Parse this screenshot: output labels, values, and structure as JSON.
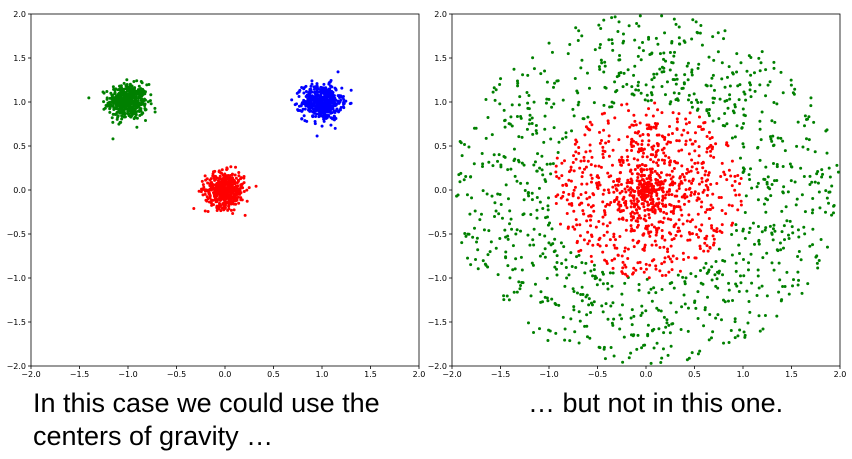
{
  "chart_data": [
    {
      "type": "scatter",
      "xlim": [
        -2.0,
        2.0
      ],
      "ylim": [
        -2.0,
        2.0
      ],
      "x_ticks": [
        "−2.0",
        "−1.5",
        "−1.0",
        "−0.5",
        "0.0",
        "0.5",
        "1.0",
        "1.5",
        "2.0"
      ],
      "y_ticks": [
        "−2.0",
        "−1.5",
        "−1.0",
        "−0.5",
        "0.0",
        "0.5",
        "1.0",
        "1.5",
        "2.0"
      ],
      "grid": false,
      "series": [
        {
          "color": "#008000",
          "shape": "gaussian",
          "center": [
            -1.0,
            1.0
          ],
          "spread": 0.1,
          "count": 500
        },
        {
          "color": "#0000ff",
          "shape": "gaussian",
          "center": [
            1.0,
            1.0
          ],
          "spread": 0.1,
          "count": 500
        },
        {
          "color": "#ff0000",
          "shape": "gaussian",
          "center": [
            0.0,
            0.0
          ],
          "spread": 0.1,
          "count": 500
        }
      ]
    },
    {
      "type": "scatter",
      "xlim": [
        -2.0,
        2.0
      ],
      "ylim": [
        -2.0,
        2.0
      ],
      "x_ticks": [
        "−2.0",
        "−1.5",
        "−1.0",
        "−0.5",
        "0.0",
        "0.5",
        "1.0",
        "1.5",
        "2.0"
      ],
      "y_ticks": [
        "−2.0",
        "−1.5",
        "−1.0",
        "−0.5",
        "0.0",
        "0.5",
        "1.0",
        "1.5",
        "2.0"
      ],
      "grid": false,
      "series": [
        {
          "color": "#008000",
          "shape": "ring",
          "center": [
            0.0,
            0.0
          ],
          "r_min": 1.0,
          "r_max": 2.0,
          "count": 1000
        },
        {
          "color": "#ff0000",
          "shape": "disk",
          "center": [
            0.0,
            0.0
          ],
          "r_max": 1.0,
          "count": 1000
        }
      ]
    }
  ],
  "captions": {
    "left_line1": "In this case we could use the",
    "left_line2": "centers of gravity …",
    "right_line1": "… but not in this one."
  }
}
